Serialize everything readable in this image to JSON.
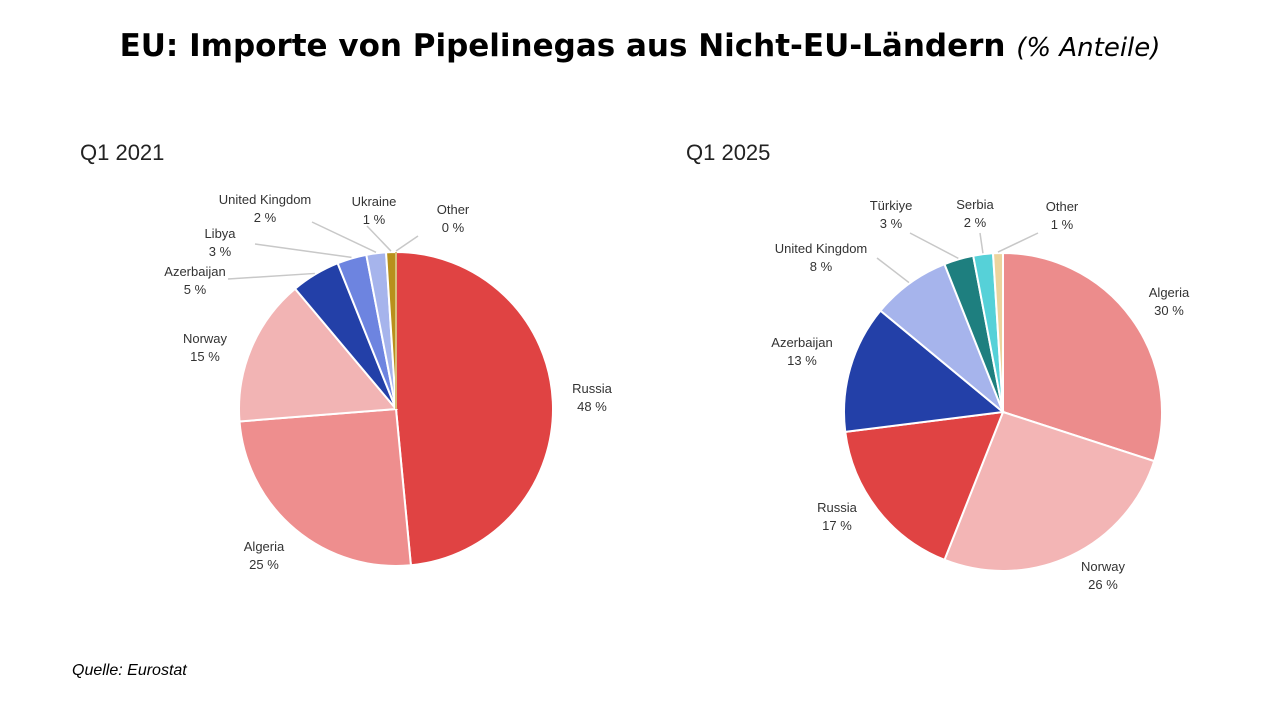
{
  "title": "EU: Importe von Pipelinegas aus Nicht-EU-Ländern",
  "title_note": "(% Anteile)",
  "source": "Quelle: Eurostat",
  "chart_data": [
    {
      "type": "pie",
      "title": "Q1 2021",
      "categories": [
        "Russia",
        "Algeria",
        "Norway",
        "Azerbaijan",
        "Libya",
        "United Kingdom",
        "Ukraine",
        "Other"
      ],
      "values": [
        48,
        25,
        15,
        5,
        3,
        2,
        1,
        0
      ],
      "value_labels": [
        "48 %",
        "25 %",
        "15 %",
        "5 %",
        "3 %",
        "2 %",
        "1 %",
        "0 %"
      ],
      "colors": [
        "#e04343",
        "#ee8e8e",
        "#f2b4b4",
        "#2340a8",
        "#6d84e0",
        "#a6b4ec",
        "#b8901c",
        "#d8c07a"
      ],
      "start": "12 o'clock, clockwise"
    },
    {
      "type": "pie",
      "title": "Q1 2025",
      "categories": [
        "Algeria",
        "Norway",
        "Russia",
        "Azerbaijan",
        "United Kingdom",
        "Türkiye",
        "Serbia",
        "Other"
      ],
      "values": [
        30,
        26,
        17,
        13,
        8,
        3,
        2,
        1
      ],
      "value_labels": [
        "30 %",
        "26 %",
        "17 %",
        "13 %",
        "8 %",
        "3 %",
        "2 %",
        "1 %"
      ],
      "colors": [
        "#ec8c8c",
        "#f3b5b5",
        "#e04343",
        "#2340a8",
        "#a6b4ec",
        "#1e7f7f",
        "#56d1d8",
        "#ecd49e"
      ],
      "start": "12 o'clock, clockwise"
    }
  ]
}
